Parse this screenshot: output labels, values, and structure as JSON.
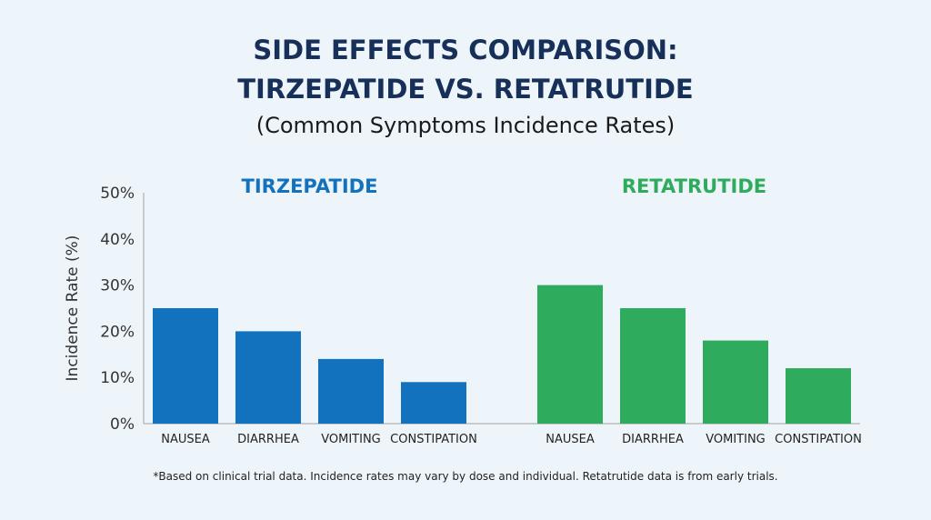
{
  "chart_data": {
    "type": "bar",
    "title": "SIDE EFFECTS COMPARISON:",
    "title_line2": "TIRZEPATIDE VS. RETATRUTIDE",
    "subtitle": "(Common Symptoms Incidence Rates)",
    "ylabel": "Incidence Rate (%)",
    "ylim": [
      0,
      50
    ],
    "yticks": [
      "0%",
      "10%",
      "20%",
      "30%",
      "40%",
      "50%"
    ],
    "grid": false,
    "categories": [
      "NAUSEA",
      "DIARRHEA",
      "VOMITING",
      "CONSTIPATION"
    ],
    "series": [
      {
        "name": "TIRZEPATIDE",
        "color": "#1272bd",
        "values": [
          25,
          20,
          14,
          9
        ]
      },
      {
        "name": "RETATRUTIDE",
        "color": "#2fab5e",
        "values": [
          30,
          25,
          18,
          12
        ]
      }
    ],
    "footnote": "*Based on clinical trial data. Incidence rates may vary by dose and individual. Retatrutide data is from early trials."
  }
}
